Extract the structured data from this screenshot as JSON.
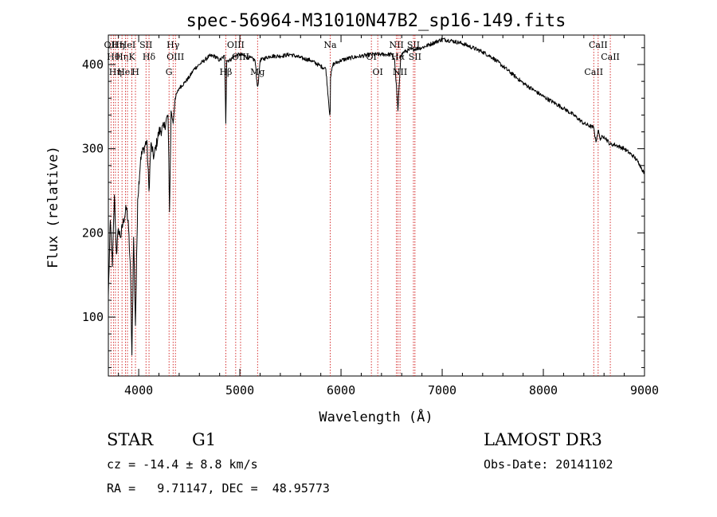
{
  "chart_data": {
    "type": "line",
    "title": "spec-56964-M31010N47B2_sp16-149.fits",
    "xlabel": "Wavelength (Å)",
    "ylabel": "Flux (relative)",
    "xlim": [
      3700,
      9000
    ],
    "ylim": [
      30,
      435
    ],
    "x_ticks": [
      4000,
      5000,
      6000,
      7000,
      8000,
      9000
    ],
    "x_tick_labels": [
      "4000",
      "5000",
      "6000",
      "7000",
      "8000",
      "9000"
    ],
    "y_ticks": [
      100,
      200,
      300,
      400
    ],
    "y_tick_labels": [
      "100",
      "200",
      "300",
      "400"
    ],
    "grid": false,
    "series": [
      {
        "x": [
          3700,
          3720,
          3740,
          3760,
          3780,
          3800,
          3820,
          3850,
          3880,
          3900,
          3920,
          3933,
          3950,
          3968,
          3990,
          4020,
          4050,
          4080,
          4102,
          4120,
          4150,
          4200,
          4250,
          4290,
          4305,
          4320,
          4340,
          4360,
          4400,
          4450,
          4500,
          4550,
          4600,
          4650,
          4700,
          4750,
          4800,
          4850,
          4861,
          4870,
          4900,
          4950,
          5000,
          5050,
          5100,
          5150,
          5172,
          5183,
          5200,
          5300,
          5400,
          5500,
          5600,
          5700,
          5800,
          5850,
          5889,
          5893,
          5896,
          5920,
          6000,
          6100,
          6200,
          6300,
          6400,
          6500,
          6530,
          6563,
          6590,
          6620,
          6700,
          6800,
          6900,
          7000,
          7100,
          7200,
          7300,
          7400,
          7500,
          7600,
          7700,
          7800,
          7900,
          8000,
          8100,
          8200,
          8300,
          8400,
          8498,
          8520,
          8542,
          8560,
          8600,
          8662,
          8700,
          8800,
          8900,
          8950,
          9000
        ],
        "y": [
          125,
          215,
          160,
          245,
          175,
          205,
          195,
          215,
          230,
          205,
          150,
          55,
          195,
          90,
          240,
          290,
          300,
          310,
          250,
          305,
          290,
          320,
          325,
          340,
          225,
          345,
          330,
          360,
          372,
          378,
          385,
          395,
          400,
          405,
          410,
          410,
          405,
          410,
          330,
          405,
          405,
          410,
          412,
          410,
          408,
          405,
          375,
          378,
          405,
          410,
          410,
          412,
          408,
          405,
          398,
          395,
          340,
          345,
          385,
          400,
          405,
          408,
          410,
          412,
          412,
          412,
          405,
          345,
          410,
          415,
          418,
          420,
          425,
          430,
          428,
          425,
          420,
          415,
          408,
          398,
          388,
          378,
          370,
          362,
          355,
          348,
          340,
          330,
          325,
          308,
          322,
          312,
          315,
          305,
          305,
          300,
          290,
          282,
          270
        ]
      }
    ],
    "line_marks": [
      {
        "wl": 3726,
        "label": "OII"
      },
      {
        "wl": 3750,
        "label": "Hθ"
      },
      {
        "wl": 3770,
        "label": "Hη"
      },
      {
        "wl": 3797,
        "label": "Hη"
      },
      {
        "wl": 3835,
        "label": "Hη"
      },
      {
        "wl": 3869,
        "label": "HeI"
      },
      {
        "wl": 3889,
        "label": "HeI"
      },
      {
        "wl": 3933,
        "label": "K"
      },
      {
        "wl": 3968,
        "label": "H"
      },
      {
        "wl": 4072,
        "label": "SII"
      },
      {
        "wl": 4102,
        "label": "Hδ"
      },
      {
        "wl": 4300,
        "label": "G"
      },
      {
        "wl": 4340,
        "label": "Hγ"
      },
      {
        "wl": 4363,
        "label": "OIII"
      },
      {
        "wl": 4861,
        "label": "Hβ"
      },
      {
        "wl": 4959,
        "label": "OIII"
      },
      {
        "wl": 5007,
        "label": "OIII"
      },
      {
        "wl": 5175,
        "label": "Mg"
      },
      {
        "wl": 5893,
        "label": "Na"
      },
      {
        "wl": 6300,
        "label": "OI"
      },
      {
        "wl": 6363,
        "label": "OI"
      },
      {
        "wl": 6548,
        "label": "NII"
      },
      {
        "wl": 6563,
        "label": "Hα"
      },
      {
        "wl": 6583,
        "label": "NII"
      },
      {
        "wl": 6716,
        "label": "SII"
      },
      {
        "wl": 6731,
        "label": "SII"
      },
      {
        "wl": 8498,
        "label": "CaII"
      },
      {
        "wl": 8542,
        "label": "CaII"
      },
      {
        "wl": 8662,
        "label": "CaII"
      }
    ],
    "line_mark_color": "#cc0000"
  },
  "info": {
    "object_type": "STAR",
    "subclass": "G1",
    "survey": "LAMOST DR3",
    "redshift": "cz = -14.4 ± 8.8 km/s",
    "obs_date": "Obs-Date: 20141102",
    "coords": "RA =   9.71147, DEC =  48.95773"
  }
}
